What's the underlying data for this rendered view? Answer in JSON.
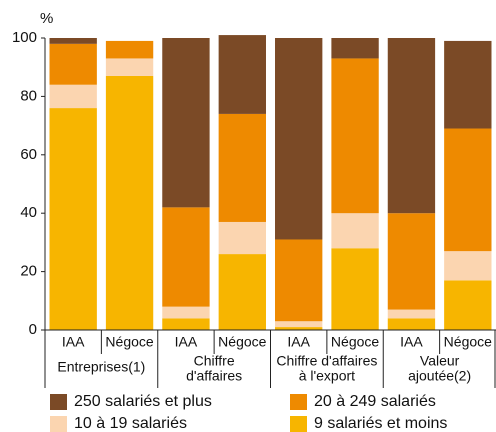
{
  "chart_data": {
    "type": "stacked_bar",
    "y_label": "%",
    "categories": [
      "IAA",
      "Négoce",
      "IAA",
      "Négoce",
      "IAA",
      "Négoce",
      "IAA",
      "Négoce"
    ],
    "groups": [
      [
        "Entreprises(1)"
      ],
      [
        "Chiffre",
        "d'affaires"
      ],
      [
        "Chiffre d'affaires",
        "à l'export"
      ],
      [
        "Valeur",
        "ajoutée(2)"
      ]
    ],
    "series": [
      {
        "name": "9 salariés et moins",
        "color": "#f7b500",
        "values": [
          76,
          87,
          4,
          26,
          1,
          28,
          4,
          17
        ]
      },
      {
        "name": "10 à 19 salariés",
        "color": "#fbd5b0",
        "values": [
          8,
          6,
          4,
          11,
          2,
          12,
          3,
          10
        ]
      },
      {
        "name": "20 à 249 salariés",
        "color": "#ee8a00",
        "values": [
          14,
          6,
          34,
          37,
          28,
          53,
          33,
          42
        ]
      },
      {
        "name": "250 salariés et plus",
        "color": "#7b4a26",
        "values": [
          2,
          0,
          58,
          27,
          69,
          7,
          60,
          30
        ]
      }
    ],
    "ylim": [
      0,
      100
    ],
    "yticks": [
      0,
      20,
      40,
      60,
      80,
      100
    ]
  }
}
